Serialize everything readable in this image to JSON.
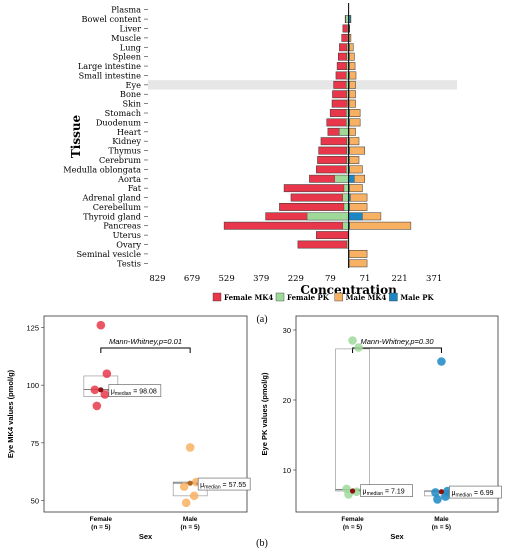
{
  "captions": {
    "a": "(a)",
    "b": "(b)"
  },
  "chart_data": [
    {
      "type": "bar",
      "orientation": "horizontal-butterfly",
      "xlabel": "Concentration",
      "ylabel": "Tissue",
      "x_tick_labels": [
        "829",
        "679",
        "529",
        "379",
        "229",
        "79",
        "71",
        "221",
        "371"
      ],
      "x_ticks": [
        -829,
        -679,
        -529,
        -379,
        -229,
        -79,
        71,
        221,
        371
      ],
      "xlim": [
        -870,
        470
      ],
      "highlighted_category": "Eye",
      "categories": [
        "Plasma",
        "Bowel content",
        "Liver",
        "Muscle",
        "Lung",
        "Spleen",
        "Large intestine",
        "Small intestine",
        "Eye",
        "Bone",
        "Skin",
        "Stomach",
        "Duodenum",
        "Heart",
        "Kidney",
        "Thymus",
        "Cerebrum",
        "Medulla oblongata",
        "Aorta",
        "Fat",
        "Adrenal gland",
        "Cerebellum",
        "Thyroid gland",
        "Pancreas",
        "Uterus",
        "Ovary",
        "Seminal vesicle",
        "Testis"
      ],
      "series": [
        {
          "name": "Female MK4",
          "side": "left",
          "color": "#e8374a",
          "values": [
            0,
            15,
            25,
            30,
            40,
            45,
            50,
            55,
            65,
            70,
            72,
            80,
            95,
            90,
            120,
            130,
            135,
            140,
            170,
            280,
            250,
            300,
            360,
            540,
            140,
            220,
            0,
            0
          ]
        },
        {
          "name": "Female PK",
          "side": "left",
          "color": "#9ed99a",
          "values": [
            0,
            12,
            5,
            5,
            7,
            8,
            8,
            10,
            10,
            8,
            6,
            10,
            10,
            40,
            8,
            8,
            8,
            10,
            60,
            20,
            25,
            20,
            180,
            25,
            0,
            7,
            0,
            0
          ]
        },
        {
          "name": "Male MK4",
          "side": "right",
          "color": "#f8b062",
          "values": [
            0,
            10,
            5,
            10,
            20,
            25,
            28,
            32,
            30,
            30,
            30,
            50,
            50,
            30,
            45,
            70,
            45,
            60,
            70,
            60,
            80,
            80,
            140,
            270,
            0,
            0,
            80,
            80
          ]
        },
        {
          "name": "Male PK",
          "side": "right",
          "color": "#1b88c4",
          "values": [
            0,
            8,
            3,
            3,
            4,
            4,
            4,
            4,
            4,
            3,
            3,
            5,
            5,
            3,
            4,
            5,
            4,
            5,
            25,
            4,
            8,
            5,
            60,
            5,
            0,
            0,
            3,
            3
          ]
        }
      ]
    },
    {
      "type": "scatter",
      "ylabel": "Eye MK4 values (pmol/g)",
      "xlabel": "Sex",
      "categories": [
        "Female",
        "Male"
      ],
      "category_n": [
        "(n = 5)",
        "(n = 5)"
      ],
      "ylim": [
        45,
        130
      ],
      "y_ticks": [
        50,
        75,
        100,
        125
      ],
      "annotation": "Mann-Whitney,p=0.01",
      "median_prefix": "μ",
      "median_sub": "median",
      "groups": [
        {
          "name": "Female",
          "color": "#e8374a",
          "mean_color": "#8b1010",
          "points": [
            126,
            105,
            98,
            96,
            91
          ],
          "mean": 98.0,
          "box": {
            "q1": 95,
            "median": 98.08,
            "q3": 104
          },
          "median_label": "= 98.08"
        },
        {
          "name": "Male",
          "color": "#f8b062",
          "mean_color": "#b5651d",
          "points": [
            73,
            58,
            56,
            52,
            49
          ],
          "mean": 57.5,
          "box": {
            "q1": 52,
            "median": 57.55,
            "q3": 58
          },
          "median_label": "= 57.55"
        }
      ]
    },
    {
      "type": "scatter",
      "ylabel": "Eye PK values (pmol/g)",
      "xlabel": "Sex",
      "categories": [
        "Female",
        "Male"
      ],
      "category_n": [
        "(n = 5)",
        "(n = 5)"
      ],
      "ylim": [
        4,
        32
      ],
      "y_ticks": [
        10,
        20,
        30
      ],
      "annotation": "Mann-Whitney,p=0.30",
      "median_prefix": "μ",
      "median_sub": "median",
      "groups": [
        {
          "name": "Female",
          "color": "#9ed99a",
          "mean_color": "#8b1010",
          "points": [
            28.5,
            27.5,
            7.3,
            6.9,
            6.5
          ],
          "mean": 7.0,
          "box": {
            "q1": 7.0,
            "median": 7.19,
            "q3": 27.3
          },
          "median_label": "= 7.19"
        },
        {
          "name": "Male",
          "color": "#1b88c4",
          "mean_color": "#8b1010",
          "points": [
            25.5,
            7.0,
            6.8,
            6.2,
            5.8
          ],
          "mean": 6.9,
          "box": {
            "q1": 6.3,
            "median": 6.99,
            "q3": 7.0
          },
          "median_label": "= 6.99"
        }
      ]
    }
  ]
}
